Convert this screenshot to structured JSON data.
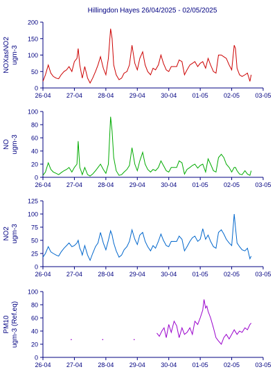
{
  "title": "Hillingdon Hayes  26/04/2025 - 02/05/2025",
  "colors": {
    "axis": "#000080",
    "panel_0": "#cc0000",
    "panel_1": "#00aa00",
    "panel_2": "#0066cc",
    "panel_3": "#9900cc"
  },
  "chart_data": [
    {
      "type": "line",
      "ylabel": [
        "NOXasNO2",
        "ugm-3"
      ],
      "ylim": [
        0,
        200
      ],
      "yticks": [
        0,
        50,
        100,
        150,
        200
      ],
      "xlim": [
        0,
        7
      ],
      "xticks": [
        "26-04",
        "27-04",
        "28-04",
        "29-04",
        "30-04",
        "01-05",
        "02-05",
        "03-05"
      ],
      "series": [
        {
          "x": [
            0.0,
            0.08,
            0.17,
            0.25,
            0.33,
            0.42,
            0.5,
            0.58,
            0.67,
            0.75,
            0.83,
            0.92,
            1.0,
            1.08,
            1.12,
            1.17,
            1.21,
            1.25,
            1.33,
            1.42,
            1.5,
            1.58,
            1.67,
            1.75,
            1.83,
            1.92,
            2.0,
            2.08,
            2.15,
            2.2,
            2.25,
            2.33,
            2.42,
            2.5,
            2.58,
            2.67,
            2.75,
            2.83,
            2.92,
            3.0,
            3.08,
            3.17,
            3.25,
            3.33,
            3.42,
            3.5,
            3.58,
            3.67,
            3.75,
            3.83,
            3.92,
            4.0,
            4.08,
            4.17,
            4.25,
            4.33,
            4.42,
            4.5,
            4.58,
            4.67,
            4.75,
            4.83,
            4.92,
            5.0,
            5.08,
            5.17,
            5.25,
            5.33,
            5.42,
            5.5,
            5.58,
            5.67,
            5.75,
            5.83,
            5.92,
            6.0,
            6.08,
            6.12,
            6.17,
            6.25,
            6.33,
            6.42,
            6.5,
            6.58,
            6.62
          ],
          "values": [
            20,
            40,
            70,
            45,
            35,
            30,
            28,
            40,
            50,
            55,
            65,
            50,
            80,
            90,
            120,
            70,
            50,
            30,
            65,
            30,
            15,
            30,
            50,
            70,
            95,
            60,
            40,
            90,
            180,
            150,
            70,
            40,
            25,
            30,
            45,
            50,
            70,
            130,
            75,
            55,
            90,
            110,
            70,
            50,
            40,
            60,
            55,
            70,
            100,
            75,
            55,
            50,
            65,
            65,
            65,
            85,
            80,
            40,
            55,
            70,
            75,
            80,
            65,
            75,
            80,
            60,
            90,
            70,
            50,
            45,
            100,
            100,
            95,
            90,
            70,
            55,
            130,
            120,
            60,
            40,
            35,
            40,
            45,
            20,
            40
          ]
        }
      ]
    },
    {
      "type": "line",
      "ylabel": [
        "NO",
        "ugm-3"
      ],
      "ylim": [
        0,
        100
      ],
      "yticks": [
        0,
        20,
        40,
        60,
        80,
        100
      ],
      "xlim": [
        0,
        7
      ],
      "xticks": [
        "26-04",
        "27-04",
        "28-04",
        "29-04",
        "30-04",
        "01-05",
        "02-05",
        "03-05"
      ],
      "series": [
        {
          "x": [
            0.0,
            0.08,
            0.17,
            0.25,
            0.33,
            0.42,
            0.5,
            0.58,
            0.67,
            0.75,
            0.83,
            0.92,
            1.0,
            1.08,
            1.12,
            1.17,
            1.21,
            1.25,
            1.33,
            1.42,
            1.5,
            1.58,
            1.67,
            1.75,
            1.83,
            1.92,
            2.0,
            2.08,
            2.15,
            2.2,
            2.25,
            2.33,
            2.42,
            2.5,
            2.58,
            2.67,
            2.75,
            2.83,
            2.92,
            3.0,
            3.08,
            3.17,
            3.25,
            3.33,
            3.42,
            3.5,
            3.58,
            3.67,
            3.75,
            3.83,
            3.92,
            4.0,
            4.08,
            4.17,
            4.25,
            4.33,
            4.42,
            4.5,
            4.58,
            4.67,
            4.75,
            4.83,
            4.92,
            5.0,
            5.08,
            5.17,
            5.25,
            5.33,
            5.42,
            5.5,
            5.58,
            5.67,
            5.75,
            5.83,
            5.92,
            6.0,
            6.08,
            6.12,
            6.17,
            6.25,
            6.33,
            6.42,
            6.5,
            6.58,
            6.62
          ],
          "values": [
            3,
            8,
            22,
            12,
            8,
            6,
            4,
            7,
            10,
            12,
            15,
            8,
            15,
            20,
            55,
            15,
            10,
            4,
            15,
            4,
            2,
            5,
            10,
            15,
            20,
            12,
            6,
            20,
            92,
            70,
            30,
            10,
            3,
            4,
            8,
            12,
            18,
            45,
            20,
            10,
            25,
            38,
            20,
            12,
            8,
            12,
            10,
            15,
            25,
            18,
            10,
            8,
            15,
            15,
            15,
            25,
            22,
            5,
            12,
            15,
            18,
            20,
            14,
            18,
            20,
            8,
            28,
            20,
            10,
            8,
            30,
            35,
            30,
            20,
            15,
            8,
            15,
            15,
            10,
            5,
            4,
            10,
            5,
            3,
            10
          ]
        }
      ]
    },
    {
      "type": "line",
      "ylabel": [
        "NO2",
        "ugm-3"
      ],
      "ylim": [
        0,
        125
      ],
      "yticks": [
        0,
        25,
        50,
        75,
        100,
        125
      ],
      "xlim": [
        0,
        7
      ],
      "xticks": [
        "26-04",
        "27-04",
        "28-04",
        "29-04",
        "30-04",
        "01-05",
        "02-05",
        "03-05"
      ],
      "series": [
        {
          "x": [
            0.0,
            0.08,
            0.17,
            0.25,
            0.33,
            0.42,
            0.5,
            0.58,
            0.67,
            0.75,
            0.83,
            0.92,
            1.0,
            1.08,
            1.12,
            1.17,
            1.21,
            1.25,
            1.33,
            1.42,
            1.5,
            1.58,
            1.67,
            1.75,
            1.83,
            1.92,
            2.0,
            2.08,
            2.15,
            2.2,
            2.25,
            2.33,
            2.42,
            2.5,
            2.58,
            2.67,
            2.75,
            2.83,
            2.92,
            3.0,
            3.08,
            3.17,
            3.25,
            3.33,
            3.42,
            3.5,
            3.58,
            3.67,
            3.75,
            3.83,
            3.92,
            4.0,
            4.08,
            4.17,
            4.25,
            4.33,
            4.42,
            4.5,
            4.58,
            4.67,
            4.75,
            4.83,
            4.92,
            5.0,
            5.08,
            5.17,
            5.25,
            5.33,
            5.42,
            5.5,
            5.58,
            5.67,
            5.75,
            5.83,
            5.92,
            6.0,
            6.08,
            6.12,
            6.17,
            6.25,
            6.33,
            6.42,
            6.5,
            6.58,
            6.62
          ],
          "values": [
            18,
            25,
            38,
            28,
            25,
            22,
            20,
            28,
            35,
            40,
            45,
            38,
            40,
            45,
            50,
            35,
            30,
            22,
            40,
            22,
            12,
            25,
            38,
            45,
            65,
            45,
            32,
            50,
            68,
            60,
            45,
            30,
            18,
            22,
            32,
            38,
            48,
            70,
            52,
            42,
            60,
            65,
            48,
            38,
            30,
            40,
            35,
            48,
            62,
            50,
            40,
            38,
            48,
            48,
            48,
            58,
            52,
            30,
            38,
            48,
            55,
            58,
            48,
            52,
            72,
            52,
            60,
            48,
            38,
            35,
            65,
            70,
            62,
            52,
            45,
            40,
            100,
            75,
            45,
            38,
            32,
            30,
            35,
            15,
            20
          ]
        }
      ]
    },
    {
      "type": "line",
      "ylabel": [
        "PM10",
        "ugm-3 (Ref.eq)"
      ],
      "ylim": [
        0,
        100
      ],
      "yticks": [
        0,
        20,
        40,
        60,
        80,
        100
      ],
      "xlim": [
        0,
        7
      ],
      "xticks": [
        "26-04",
        "27-04",
        "28-04",
        "29-04",
        "30-04",
        "01-05",
        "02-05",
        "03-05"
      ],
      "points": [
        {
          "x": 0.9,
          "y": 27
        },
        {
          "x": 1.9,
          "y": 27
        },
        {
          "x": 2.9,
          "y": 27
        }
      ],
      "series": [
        {
          "x": [
            3.62,
            3.7,
            3.78,
            3.85,
            3.92,
            4.0,
            4.08,
            4.17,
            4.25,
            4.33,
            4.42,
            4.5,
            4.58,
            4.67,
            4.75,
            4.83,
            4.92,
            5.0,
            5.08,
            5.12,
            5.17,
            5.21,
            5.25,
            5.33,
            5.42,
            5.5,
            5.58,
            5.67,
            5.75,
            5.83,
            5.92,
            6.0,
            6.08,
            6.17,
            6.25,
            6.33,
            6.42,
            6.5,
            6.58,
            6.62
          ],
          "values": [
            37,
            32,
            40,
            45,
            30,
            50,
            38,
            55,
            48,
            30,
            45,
            35,
            38,
            45,
            35,
            55,
            50,
            60,
            72,
            88,
            75,
            78,
            70,
            60,
            45,
            30,
            25,
            20,
            30,
            35,
            28,
            35,
            42,
            35,
            40,
            38,
            45,
            42,
            50,
            52
          ]
        }
      ]
    }
  ]
}
